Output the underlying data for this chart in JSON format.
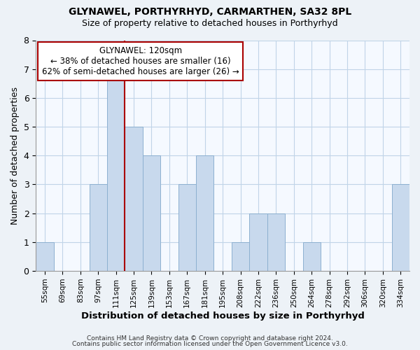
{
  "title": "GLYNAWEL, PORTHYRHYD, CARMARTHEN, SA32 8PL",
  "subtitle": "Size of property relative to detached houses in Porthyrhyd",
  "xlabel": "Distribution of detached houses by size in Porthyrhyd",
  "ylabel": "Number of detached properties",
  "bar_color": "#c8d9ed",
  "bar_edge_color": "#8db0d0",
  "bin_labels": [
    "55sqm",
    "69sqm",
    "83sqm",
    "97sqm",
    "111sqm",
    "125sqm",
    "139sqm",
    "153sqm",
    "167sqm",
    "181sqm",
    "195sqm",
    "208sqm",
    "222sqm",
    "236sqm",
    "250sqm",
    "264sqm",
    "278sqm",
    "292sqm",
    "306sqm",
    "320sqm",
    "334sqm"
  ],
  "counts": [
    1,
    0,
    0,
    3,
    7,
    5,
    4,
    0,
    3,
    4,
    0,
    1,
    2,
    2,
    0,
    1,
    0,
    0,
    0,
    0,
    3
  ],
  "ylim": [
    0,
    8
  ],
  "yticks": [
    0,
    1,
    2,
    3,
    4,
    5,
    6,
    7,
    8
  ],
  "annotation_title": "GLYNAWEL: 120sqm",
  "annotation_line1": "← 38% of detached houses are smaller (16)",
  "annotation_line2": "62% of semi-detached houses are larger (26) →",
  "vline_color": "#aa0000",
  "vline_index": 4,
  "footer1": "Contains HM Land Registry data © Crown copyright and database right 2024.",
  "footer2": "Contains public sector information licensed under the Open Government Licence v3.0.",
  "background_color": "#edf2f7",
  "plot_bg_color": "#f5f9ff",
  "grid_color": "#c0d4e8"
}
